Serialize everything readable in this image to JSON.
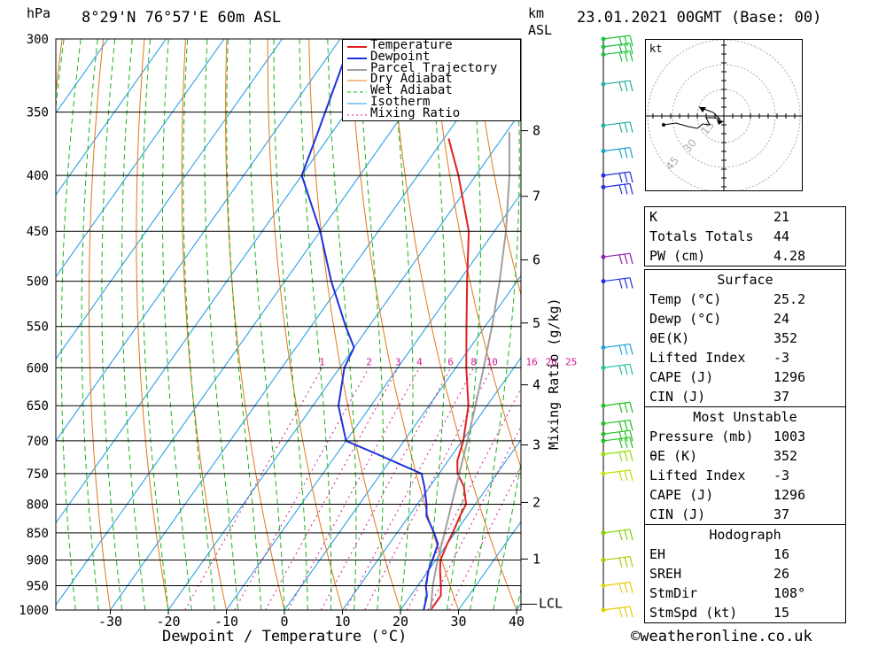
{
  "header": {
    "hpa_label": "hPa",
    "location": "8°29'N  76°57'E  60m  ASL",
    "km_label": "km",
    "asl_label": "ASL",
    "date": "23.01.2021  00GMT  (Base: 00)"
  },
  "legend": [
    "Temperature",
    "Dewpoint",
    "Parcel Trajectory",
    "Dry Adiabat",
    "Wet Adiabat",
    "Isotherm",
    "Mixing Ratio"
  ],
  "colors": {
    "temperature": "#e02020",
    "dewpoint": "#2030e0",
    "parcel": "#a0a0a0",
    "dry_adiabat": "#e07818",
    "wet_adiabat": "#18b418",
    "isotherm": "#1898e0",
    "mixing_ratio": "#d01890"
  },
  "chart_data": {
    "type": "line",
    "xlabel": "Dewpoint / Temperature (°C)",
    "ylabel": "hPa",
    "right_label": "Mixing Ratio (g/kg)",
    "pressure_levels": [
      "300",
      "350",
      "400",
      "450",
      "500",
      "550",
      "600",
      "650",
      "700",
      "750",
      "800",
      "850",
      "900",
      "950",
      "1000"
    ],
    "temperature_ticks": [
      "-30",
      "-20",
      "-10",
      "0",
      "10",
      "20",
      "30",
      "40"
    ],
    "km_ticks": [
      {
        "km": "1",
        "p": 898
      },
      {
        "km": "2",
        "p": 797
      },
      {
        "km": "3",
        "p": 706
      },
      {
        "km": "4",
        "p": 622
      },
      {
        "km": "5",
        "p": 546
      },
      {
        "km": "6",
        "p": 478
      },
      {
        "km": "7",
        "p": 418
      },
      {
        "km": "8",
        "p": 364
      }
    ],
    "lcl": {
      "label": "LCL",
      "p": 995
    },
    "mixing_ratio_labels": [
      "1",
      "2",
      "3",
      "4",
      "6",
      "8",
      "10",
      "16",
      "20",
      "25"
    ],
    "series": [
      {
        "name": "Temperature",
        "points": [
          [
            1000,
            25.2
          ],
          [
            970,
            25.2
          ],
          [
            950,
            24.0
          ],
          [
            920,
            22.0
          ],
          [
            900,
            20.8
          ],
          [
            870,
            20.0
          ],
          [
            850,
            19.6
          ],
          [
            820,
            18.8
          ],
          [
            800,
            18.4
          ],
          [
            770,
            15.8
          ],
          [
            750,
            13.2
          ],
          [
            730,
            11.6
          ],
          [
            700,
            10.2
          ],
          [
            650,
            6.8
          ],
          [
            600,
            1.8
          ],
          [
            550,
            -3.2
          ],
          [
            500,
            -8.6
          ],
          [
            450,
            -14.4
          ],
          [
            400,
            -23.0
          ],
          [
            370,
            -29.2
          ]
        ]
      },
      {
        "name": "Dewpoint",
        "points": [
          [
            1000,
            24.0
          ],
          [
            970,
            22.8
          ],
          [
            950,
            21.4
          ],
          [
            920,
            20.0
          ],
          [
            900,
            19.4
          ],
          [
            870,
            18.4
          ],
          [
            850,
            16.4
          ],
          [
            820,
            13.0
          ],
          [
            800,
            11.6
          ],
          [
            770,
            9.0
          ],
          [
            750,
            7.0
          ],
          [
            720,
            -3.0
          ],
          [
            700,
            -10.0
          ],
          [
            650,
            -15.6
          ],
          [
            600,
            -19.2
          ],
          [
            575,
            -20.0
          ],
          [
            550,
            -24.0
          ],
          [
            500,
            -32.0
          ],
          [
            450,
            -40.0
          ],
          [
            400,
            -50.0
          ],
          [
            365,
            -52.5
          ],
          [
            300,
            -58.0
          ]
        ]
      },
      {
        "name": "Parcel Trajectory",
        "points": [
          [
            1000,
            25.2
          ],
          [
            950,
            22.6
          ],
          [
            900,
            20.3
          ],
          [
            850,
            18.2
          ],
          [
            800,
            15.9
          ],
          [
            750,
            13.5
          ],
          [
            700,
            10.9
          ],
          [
            650,
            8.0
          ],
          [
            600,
            4.8
          ],
          [
            550,
            1.2
          ],
          [
            500,
            -3.0
          ],
          [
            450,
            -8.0
          ],
          [
            400,
            -14.2
          ],
          [
            365,
            -19.5
          ]
        ]
      }
    ]
  },
  "stats_1": [
    {
      "k": "K",
      "v": "21"
    },
    {
      "k": "Totals Totals",
      "v": "44"
    },
    {
      "k": "PW (cm)",
      "v": "4.28"
    }
  ],
  "surface": {
    "title": "Surface",
    "rows": [
      {
        "k": "Temp (°C)",
        "v": "25.2"
      },
      {
        "k": "Dewp (°C)",
        "v": "24"
      },
      {
        "k": "θE(K)",
        "v": "352"
      },
      {
        "k": "Lifted Index",
        "v": "-3"
      },
      {
        "k": "CAPE (J)",
        "v": "1296"
      },
      {
        "k": "CIN (J)",
        "v": "37"
      }
    ]
  },
  "most_unstable": {
    "title": "Most Unstable",
    "rows": [
      {
        "k": "Pressure (mb)",
        "v": "1003"
      },
      {
        "k": "θE (K)",
        "v": "352"
      },
      {
        "k": "Lifted Index",
        "v": "-3"
      },
      {
        "k": "CAPE (J)",
        "v": "1296"
      },
      {
        "k": "CIN (J)",
        "v": "37"
      }
    ]
  },
  "hodograph": {
    "title": "Hodograph",
    "box_label": "kt",
    "ring_labels": [
      "15",
      "30",
      "45"
    ],
    "rows": [
      {
        "k": "EH",
        "v": "16"
      },
      {
        "k": "SREH",
        "v": "26"
      },
      {
        "k": "StmDir",
        "v": "108°"
      },
      {
        "k": "StmSpd (kt)",
        "v": "15"
      }
    ]
  },
  "footer": "©weatheronline.co.uk"
}
